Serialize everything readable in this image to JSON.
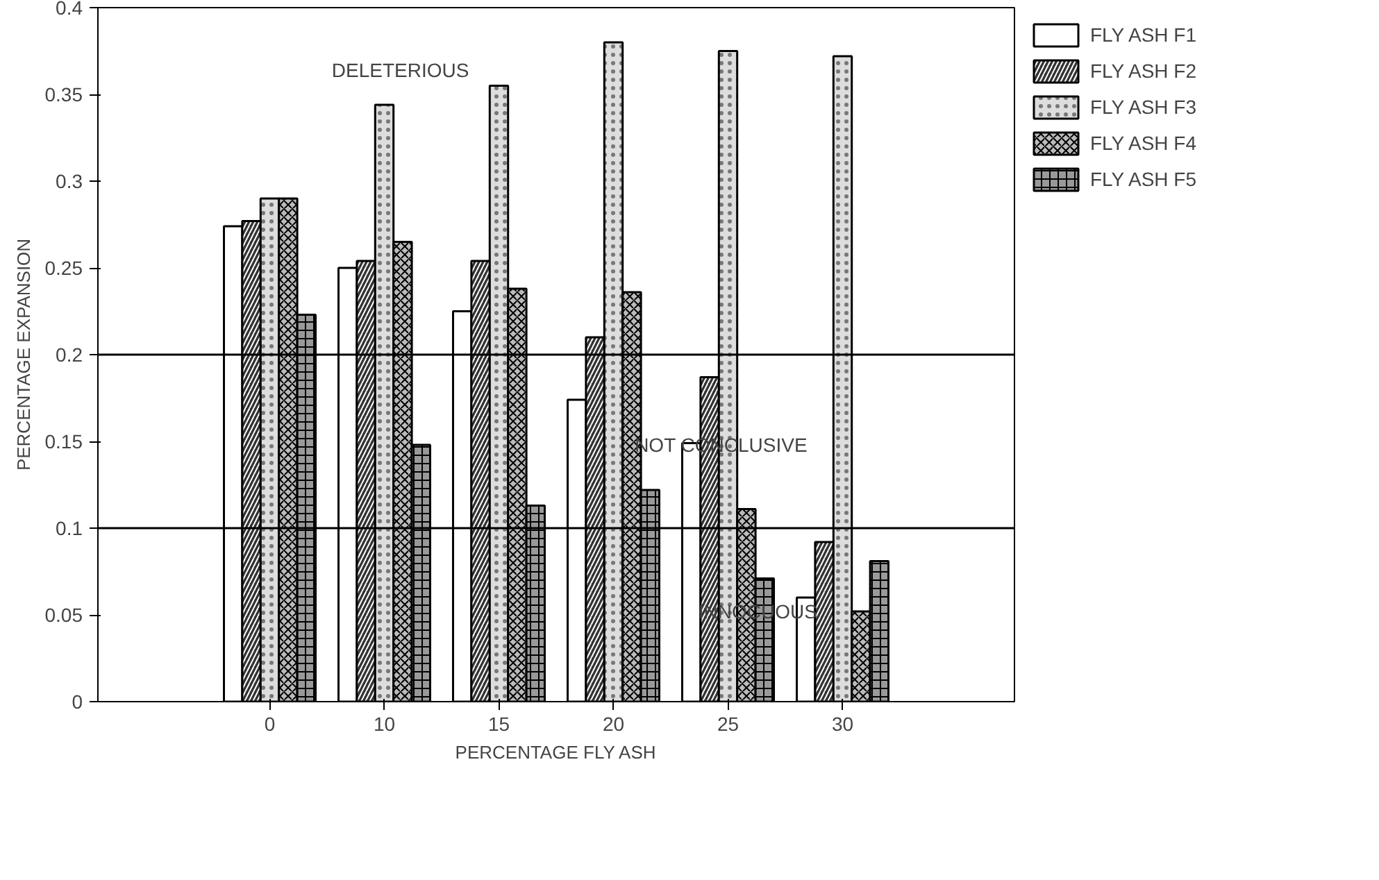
{
  "chart_data": {
    "type": "bar",
    "xlabel": "PERCENTAGE FLY ASH",
    "ylabel": "PERCENTAGE EXPANSION",
    "categories": [
      null,
      "0",
      "10",
      "15",
      "20",
      "25",
      "30",
      null
    ],
    "series": [
      {
        "name": "FLY ASH F1",
        "color": "#ffffff",
        "values": [
          null,
          0.274,
          0.25,
          0.225,
          0.174,
          0.149,
          0.06,
          null
        ]
      },
      {
        "name": "FLY ASH F2",
        "color": "#333333",
        "values": [
          null,
          0.277,
          0.254,
          0.254,
          0.21,
          0.187,
          0.092,
          null
        ]
      },
      {
        "name": "FLY ASH F3",
        "color": "#dddddd",
        "values": [
          null,
          0.29,
          0.344,
          0.355,
          0.38,
          0.375,
          0.372,
          null
        ]
      },
      {
        "name": "FLY ASH F4",
        "color": "#bbbbbb",
        "values": [
          null,
          0.29,
          0.265,
          0.238,
          0.236,
          0.111,
          0.052,
          null
        ]
      },
      {
        "name": "FLY ASH F5",
        "color": "#999999",
        "values": [
          null,
          0.223,
          0.148,
          0.113,
          0.122,
          0.071,
          0.081,
          null
        ]
      }
    ],
    "ylim": [
      0,
      0.4
    ],
    "yticks": [
      0,
      0.05,
      0.1,
      0.15,
      0.2,
      0.25,
      0.3,
      0.35,
      0.4
    ],
    "ref_lines": [
      {
        "axis": "y",
        "value": 0.2,
        "color": "#000000"
      },
      {
        "axis": "y",
        "value": 0.1,
        "color": "#000000"
      }
    ],
    "annotations": [
      "DELETERIOUS",
      "NOT CONCLUSIVE",
      "INNOCUOUS"
    ],
    "grid": false,
    "legend": "right"
  }
}
